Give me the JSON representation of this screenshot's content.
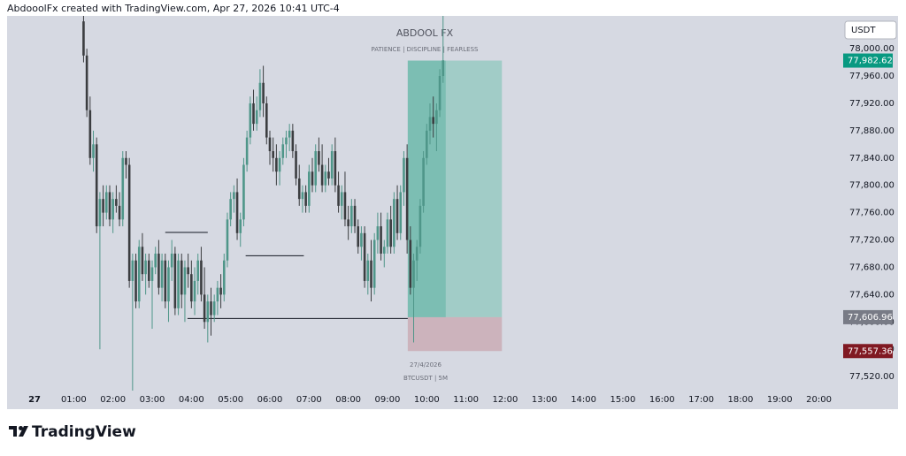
{
  "header": "AbdooolFx created with TradingView.com, Apr 27, 2026 10:41 UTC-4",
  "footer": "TradingView",
  "chart_data": {
    "type": "candlestick",
    "title": "ABDOOL FX",
    "subtitle": "PATIENCE  |  DISCIPLINE  |  FEARLESS",
    "date_label": "27/4/2026",
    "symbol": "BTCUSDT | 5M",
    "currency": "USDT",
    "up_color": "#4f9689",
    "down_color": "#3b3d40",
    "xlim": [
      -42,
      1229
    ],
    "ylim": [
      77500,
      78048
    ],
    "xticks": [
      {
        "value": 0,
        "label": "27"
      },
      {
        "value": 60,
        "label": "01:00"
      },
      {
        "value": 120,
        "label": "02:00"
      },
      {
        "value": 180,
        "label": "03:00"
      },
      {
        "value": 240,
        "label": "04:00"
      },
      {
        "value": 300,
        "label": "05:00"
      },
      {
        "value": 360,
        "label": "06:00"
      },
      {
        "value": 420,
        "label": "07:00"
      },
      {
        "value": 480,
        "label": "08:00"
      },
      {
        "value": 540,
        "label": "09:00"
      },
      {
        "value": 600,
        "label": "10:00"
      },
      {
        "value": 660,
        "label": "11:00"
      },
      {
        "value": 720,
        "label": "12:00"
      },
      {
        "value": 780,
        "label": "13:00"
      },
      {
        "value": 840,
        "label": "14:00"
      },
      {
        "value": 900,
        "label": "15:00"
      },
      {
        "value": 960,
        "label": "16:00"
      },
      {
        "value": 1020,
        "label": "17:00"
      },
      {
        "value": 1080,
        "label": "18:00"
      },
      {
        "value": 1140,
        "label": "19:00"
      },
      {
        "value": 1200,
        "label": "20:00"
      }
    ],
    "yticks": [
      {
        "value": 77520,
        "label": "77,520.00"
      },
      {
        "value": 77560,
        "label": "77,560.00"
      },
      {
        "value": 77600,
        "label": "77,600.00"
      },
      {
        "value": 77640,
        "label": "77,640.00"
      },
      {
        "value": 77680,
        "label": "77,680.00"
      },
      {
        "value": 77720,
        "label": "77,720.00"
      },
      {
        "value": 77760,
        "label": "77,760.00"
      },
      {
        "value": 77800,
        "label": "77,800.00"
      },
      {
        "value": 77840,
        "label": "77,840.00"
      },
      {
        "value": 77880,
        "label": "77,880.00"
      },
      {
        "value": 77920,
        "label": "77,920.00"
      },
      {
        "value": 77960,
        "label": "77,960.00"
      },
      {
        "value": 78000,
        "label": "78,000.00"
      }
    ],
    "x": [
      75,
      80,
      85,
      90,
      95,
      100,
      105,
      110,
      115,
      120,
      125,
      130,
      135,
      140,
      145,
      150,
      155,
      160,
      165,
      170,
      175,
      180,
      185,
      190,
      195,
      200,
      205,
      210,
      215,
      220,
      225,
      230,
      235,
      240,
      245,
      250,
      255,
      260,
      265,
      270,
      275,
      280,
      285,
      290,
      295,
      300,
      305,
      310,
      315,
      320,
      325,
      330,
      335,
      340,
      345,
      350,
      355,
      360,
      365,
      370,
      375,
      380,
      385,
      390,
      395,
      400,
      405,
      410,
      415,
      420,
      425,
      430,
      435,
      440,
      445,
      450,
      455,
      460,
      465,
      470,
      475,
      480,
      485,
      490,
      495,
      500,
      505,
      510,
      515,
      520,
      525,
      530,
      535,
      540,
      545,
      550,
      555,
      560,
      565,
      570,
      575,
      580,
      585,
      590,
      595,
      600,
      605,
      610,
      615,
      620,
      625
    ],
    "candles": [
      [
        78040,
        78048,
        77980,
        77990
      ],
      [
        77990,
        78000,
        77900,
        77910
      ],
      [
        77910,
        77930,
        77830,
        77840
      ],
      [
        77840,
        77880,
        77820,
        77860
      ],
      [
        77860,
        77870,
        77730,
        77740
      ],
      [
        77740,
        77790,
        77560,
        77780
      ],
      [
        77780,
        77800,
        77740,
        77760
      ],
      [
        77760,
        77800,
        77750,
        77790
      ],
      [
        77790,
        77800,
        77740,
        77750
      ],
      [
        77750,
        77790,
        77730,
        77780
      ],
      [
        77780,
        77800,
        77760,
        77770
      ],
      [
        77770,
        77790,
        77740,
        77750
      ],
      [
        77750,
        77850,
        77740,
        77840
      ],
      [
        77840,
        77850,
        77810,
        77830
      ],
      [
        77830,
        77840,
        77650,
        77660
      ],
      [
        77660,
        77700,
        77480,
        77690
      ],
      [
        77690,
        77700,
        77620,
        77630
      ],
      [
        77630,
        77720,
        77620,
        77710
      ],
      [
        77710,
        77730,
        77660,
        77670
      ],
      [
        77670,
        77700,
        77640,
        77690
      ],
      [
        77690,
        77700,
        77650,
        77660
      ],
      [
        77660,
        77690,
        77590,
        77680
      ],
      [
        77680,
        77710,
        77670,
        77700
      ],
      [
        77700,
        77720,
        77640,
        77650
      ],
      [
        77650,
        77700,
        77630,
        77690
      ],
      [
        77690,
        77700,
        77620,
        77630
      ],
      [
        77630,
        77690,
        77600,
        77680
      ],
      [
        77680,
        77720,
        77660,
        77700
      ],
      [
        77700,
        77710,
        77610,
        77620
      ],
      [
        77620,
        77700,
        77610,
        77690
      ],
      [
        77690,
        77700,
        77620,
        77640
      ],
      [
        77640,
        77690,
        77600,
        77680
      ],
      [
        77680,
        77700,
        77650,
        77670
      ],
      [
        77670,
        77690,
        77620,
        77630
      ],
      [
        77630,
        77680,
        77610,
        77660
      ],
      [
        77660,
        77700,
        77640,
        77690
      ],
      [
        77690,
        77710,
        77630,
        77640
      ],
      [
        77640,
        77680,
        77590,
        77600
      ],
      [
        77600,
        77640,
        77570,
        77630
      ],
      [
        77630,
        77650,
        77580,
        77610
      ],
      [
        77610,
        77640,
        77600,
        77630
      ],
      [
        77630,
        77660,
        77610,
        77650
      ],
      [
        77650,
        77670,
        77620,
        77640
      ],
      [
        77640,
        77700,
        77630,
        77690
      ],
      [
        77690,
        77760,
        77680,
        77750
      ],
      [
        77750,
        77790,
        77740,
        77780
      ],
      [
        77780,
        77800,
        77760,
        77790
      ],
      [
        77790,
        77810,
        77720,
        77730
      ],
      [
        77730,
        77760,
        77710,
        77750
      ],
      [
        77750,
        77840,
        77740,
        77830
      ],
      [
        77830,
        77880,
        77820,
        77870
      ],
      [
        77870,
        77930,
        77860,
        77920
      ],
      [
        77920,
        77940,
        77880,
        77890
      ],
      [
        77890,
        77930,
        77880,
        77910
      ],
      [
        77910,
        77970,
        77900,
        77950
      ],
      [
        77950,
        77975,
        77900,
        77920
      ],
      [
        77920,
        77930,
        77860,
        77870
      ],
      [
        77870,
        77880,
        77830,
        77850
      ],
      [
        77850,
        77870,
        77820,
        77840
      ],
      [
        77840,
        77860,
        77800,
        77820
      ],
      [
        77820,
        77850,
        77800,
        77840
      ],
      [
        77840,
        77870,
        77830,
        77860
      ],
      [
        77860,
        77880,
        77840,
        77870
      ],
      [
        77870,
        77890,
        77850,
        77880
      ],
      [
        77880,
        77890,
        77840,
        77850
      ],
      [
        77850,
        77860,
        77800,
        77810
      ],
      [
        77810,
        77830,
        77770,
        77780
      ],
      [
        77780,
        77800,
        77760,
        77790
      ],
      [
        77790,
        77800,
        77760,
        77770
      ],
      [
        77770,
        77830,
        77760,
        77820
      ],
      [
        77820,
        77840,
        77790,
        77800
      ],
      [
        77800,
        77860,
        77790,
        77850
      ],
      [
        77850,
        77870,
        77820,
        77830
      ],
      [
        77830,
        77860,
        77790,
        77800
      ],
      [
        77800,
        77830,
        77790,
        77820
      ],
      [
        77820,
        77840,
        77800,
        77810
      ],
      [
        77810,
        77860,
        77800,
        77850
      ],
      [
        77850,
        77870,
        77790,
        77800
      ],
      [
        77800,
        77820,
        77760,
        77770
      ],
      [
        77770,
        77800,
        77750,
        77790
      ],
      [
        77790,
        77820,
        77740,
        77750
      ],
      [
        77750,
        77770,
        77720,
        77740
      ],
      [
        77740,
        77780,
        77730,
        77770
      ],
      [
        77770,
        77780,
        77730,
        77740
      ],
      [
        77740,
        77750,
        77700,
        77710
      ],
      [
        77710,
        77740,
        77690,
        77730
      ],
      [
        77730,
        77740,
        77650,
        77660
      ],
      [
        77660,
        77700,
        77640,
        77690
      ],
      [
        77690,
        77720,
        77630,
        77650
      ],
      [
        77650,
        77730,
        77640,
        77720
      ],
      [
        77720,
        77760,
        77700,
        77740
      ],
      [
        77740,
        77760,
        77690,
        77700
      ],
      [
        77700,
        77720,
        77680,
        77710
      ],
      [
        77710,
        77760,
        77700,
        77750
      ],
      [
        77750,
        77770,
        77700,
        77710
      ],
      [
        77710,
        77790,
        77700,
        77780
      ],
      [
        77780,
        77800,
        77720,
        77730
      ],
      [
        77730,
        77800,
        77720,
        77790
      ],
      [
        77790,
        77850,
        77770,
        77840
      ],
      [
        77840,
        77860,
        77700,
        77720
      ],
      [
        77720,
        77740,
        77640,
        77650
      ],
      [
        77650,
        77700,
        77570,
        77690
      ],
      [
        77690,
        77720,
        77660,
        77710
      ],
      [
        77710,
        77780,
        77700,
        77770
      ],
      [
        77770,
        77850,
        77760,
        77840
      ],
      [
        77840,
        77890,
        77830,
        77880
      ],
      [
        77880,
        77920,
        77860,
        77900
      ],
      [
        77900,
        77930,
        77870,
        77890
      ],
      [
        77890,
        77920,
        77850,
        77910
      ],
      [
        77910,
        77970,
        77900,
        77960
      ],
      [
        77960,
        78060,
        77950,
        77983
      ]
    ],
    "levels": [
      {
        "price": 77731,
        "start": 200,
        "end": 265
      },
      {
        "price": 77697,
        "start": 323,
        "end": 412
      },
      {
        "price": 77605,
        "start": 234,
        "end": 571
      }
    ],
    "position": {
      "start": 571,
      "end": 715,
      "entry": 77606.96,
      "target": 77982.62,
      "stop": 77557.36
    },
    "markers": [
      {
        "value": 77982.62,
        "label": "77,982.62",
        "color": "#089981"
      },
      {
        "value": 77606.96,
        "label": "77,606.96",
        "color": "#787b86"
      },
      {
        "value": 77557.36,
        "label": "77,557.36",
        "color": "#801922"
      }
    ]
  }
}
